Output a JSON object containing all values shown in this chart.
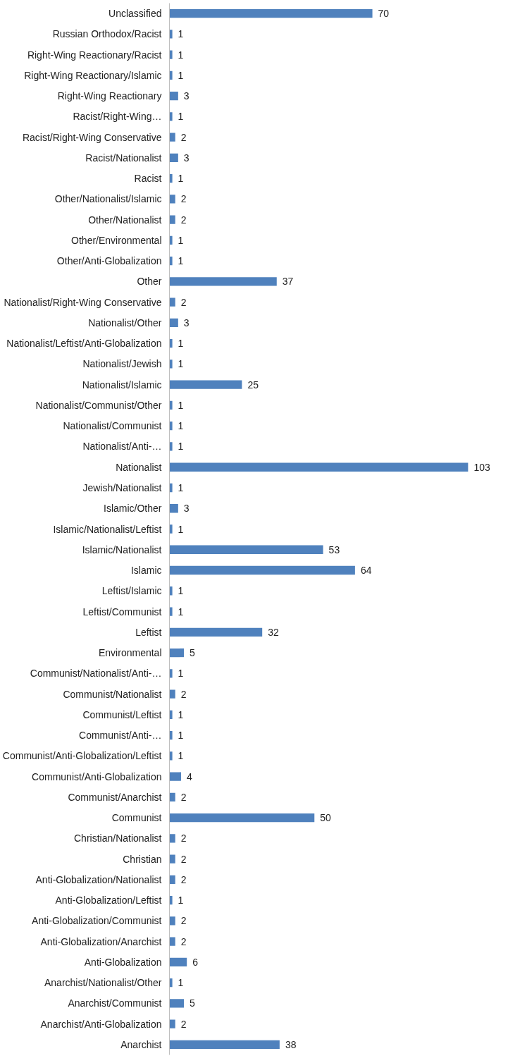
{
  "chart_data": {
    "type": "bar",
    "orientation": "horizontal",
    "data_labels": true,
    "grid": false,
    "tick_labels": "y",
    "categories": [
      "Unclassified",
      "Russian Orthodox/Racist",
      "Right-Wing Reactionary/Racist",
      "Right-Wing Reactionary/Islamic",
      "Right-Wing Reactionary",
      "Racist/Right-Wing…",
      "Racist/Right-Wing Conservative",
      "Racist/Nationalist",
      "Racist",
      "Other/Nationalist/Islamic",
      "Other/Nationalist",
      "Other/Environmental",
      "Other/Anti-Globalization",
      "Other",
      "Nationalist/Right-Wing Conservative",
      "Nationalist/Other",
      "Nationalist/Leftist/Anti-Globalization",
      "Nationalist/Jewish",
      "Nationalist/Islamic",
      "Nationalist/Communist/Other",
      "Nationalist/Communist",
      "Nationalist/Anti-…",
      "Nationalist",
      "Jewish/Nationalist",
      "Islamic/Other",
      "Islamic/Nationalist/Leftist",
      "Islamic/Nationalist",
      "Islamic",
      "Leftist/Islamic",
      "Leftist/Communist",
      "Leftist",
      "Environmental",
      "Communist/Nationalist/Anti-…",
      "Communist/Nationalist",
      "Communist/Leftist",
      "Communist/Anti-…",
      "Communist/Anti-Globalization/Leftist",
      "Communist/Anti-Globalization",
      "Communist/Anarchist",
      "Communist",
      "Christian/Nationalist",
      "Christian",
      "Anti-Globalization/Nationalist",
      "Anti-Globalization/Leftist",
      "Anti-Globalization/Communist",
      "Anti-Globalization/Anarchist",
      "Anti-Globalization",
      "Anarchist/Nationalist/Other",
      "Anarchist/Communist",
      "Anarchist/Anti-Globalization",
      "Anarchist"
    ],
    "series": [
      {
        "color": "#4f81bd",
        "values": [
          70,
          1,
          1,
          1,
          3,
          1,
          2,
          3,
          1,
          2,
          2,
          1,
          1,
          37,
          2,
          3,
          1,
          1,
          25,
          1,
          1,
          1,
          103,
          1,
          3,
          1,
          53,
          64,
          1,
          1,
          32,
          5,
          1,
          2,
          1,
          1,
          1,
          4,
          2,
          50,
          2,
          2,
          2,
          1,
          2,
          2,
          6,
          1,
          5,
          2,
          38
        ]
      }
    ]
  }
}
